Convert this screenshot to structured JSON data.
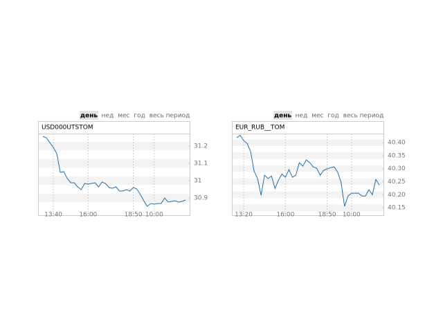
{
  "tabs": [
    "день",
    "нед",
    "мес",
    "год",
    "весь период"
  ],
  "chart_data": [
    {
      "type": "line",
      "title": "USD000UTSTOM",
      "color": "#1f6fb2",
      "categories": [
        null,
        null,
        null,
        "13:40",
        null,
        null,
        null,
        null,
        null,
        null,
        null,
        null,
        null,
        "16:00",
        null,
        null,
        null,
        null,
        null,
        null,
        null,
        null,
        null,
        null,
        null,
        null,
        "18:50",
        null,
        null,
        null,
        null,
        null,
        "10:00",
        null,
        null,
        null,
        null,
        null,
        null,
        null,
        null,
        null
      ],
      "values": [
        31.256,
        31.248,
        31.22,
        31.192,
        31.156,
        31.048,
        31.052,
        31.012,
        30.988,
        30.988,
        30.964,
        30.948,
        30.984,
        30.98,
        30.984,
        30.988,
        30.964,
        30.992,
        30.984,
        30.96,
        30.956,
        30.964,
        30.94,
        30.94,
        30.948,
        30.94,
        30.96,
        30.952,
        30.92,
        30.884,
        30.852,
        30.868,
        30.864,
        30.868,
        30.868,
        30.9,
        30.876,
        30.88,
        30.884,
        30.876,
        30.88,
        30.888
      ],
      "ylim": [
        30.836,
        31.272
      ],
      "yticks": [
        30.9,
        31.0,
        31.1,
        31.2
      ],
      "grid": true
    },
    {
      "type": "line",
      "title": "EUR_RUB__TOM",
      "color": "#1f6fb2",
      "categories": [
        null,
        null,
        "13:20",
        null,
        null,
        null,
        null,
        null,
        null,
        null,
        null,
        null,
        null,
        null,
        "16:00",
        null,
        null,
        null,
        null,
        null,
        null,
        null,
        null,
        null,
        null,
        null,
        "18:50",
        null,
        null,
        null,
        null,
        null,
        null,
        "10:00",
        null,
        null,
        null,
        null,
        null,
        null,
        null,
        null
      ],
      "values": [
        40.419,
        40.429,
        40.408,
        40.397,
        40.365,
        40.291,
        40.262,
        40.198,
        40.275,
        40.262,
        40.272,
        40.224,
        40.256,
        40.28,
        40.267,
        40.296,
        40.267,
        40.275,
        40.323,
        40.31,
        40.334,
        40.323,
        40.307,
        40.302,
        40.275,
        40.294,
        40.299,
        40.304,
        40.307,
        40.288,
        40.248,
        40.155,
        40.195,
        40.206,
        40.206,
        40.206,
        40.195,
        40.195,
        40.219,
        40.2,
        40.259,
        40.237
      ],
      "ylim": [
        40.145,
        40.435
      ],
      "yticks": [
        40.15,
        {
          "value": 40.2,
          "label": "40.20"
        },
        40.25,
        {
          "value": 40.3,
          "label": "40.30"
        },
        40.35,
        {
          "value": 40.4,
          "label": "40.40"
        }
      ],
      "grid": true
    }
  ]
}
